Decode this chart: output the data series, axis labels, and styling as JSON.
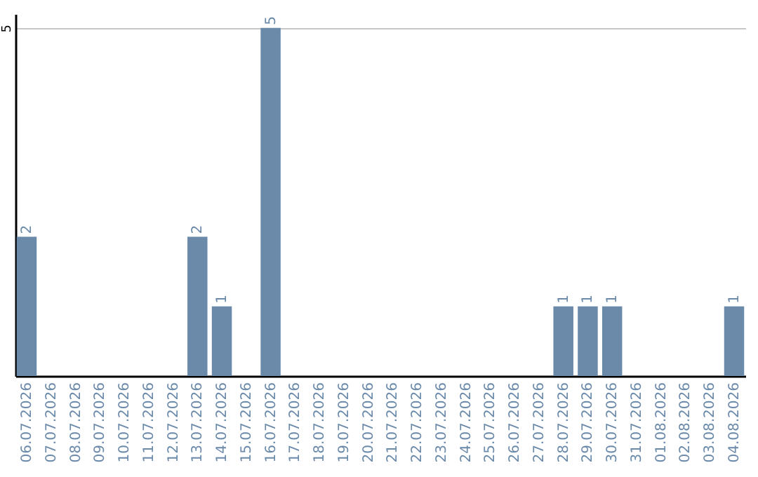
{
  "chart_data": {
    "type": "bar",
    "categories": [
      "06.07.2026",
      "07.07.2026",
      "08.07.2026",
      "09.07.2026",
      "10.07.2026",
      "11.07.2026",
      "12.07.2026",
      "13.07.2026",
      "14.07.2026",
      "15.07.2026",
      "16.07.2026",
      "17.07.2026",
      "18.07.2026",
      "19.07.2026",
      "20.07.2026",
      "21.07.2026",
      "22.07.2026",
      "23.07.2026",
      "24.07.2026",
      "25.07.2026",
      "26.07.2026",
      "27.07.2026",
      "28.07.2026",
      "29.07.2026",
      "30.07.2026",
      "31.07.2026",
      "01.08.2026",
      "02.08.2026",
      "03.08.2026",
      "04.08.2026"
    ],
    "values": [
      2,
      0,
      0,
      0,
      0,
      0,
      0,
      2,
      1,
      0,
      5,
      0,
      0,
      0,
      0,
      0,
      0,
      0,
      0,
      0,
      0,
      0,
      1,
      1,
      1,
      0,
      0,
      0,
      0,
      1
    ],
    "value_labels": [
      "2",
      null,
      null,
      null,
      null,
      null,
      null,
      "2",
      "1",
      null,
      "5",
      null,
      null,
      null,
      null,
      null,
      null,
      null,
      null,
      null,
      null,
      null,
      "1",
      "1",
      "1",
      null,
      null,
      null,
      null,
      "1"
    ],
    "color": "#6b8aaa",
    "ylim": [
      0,
      5.2
    ],
    "yticks": [
      5
    ],
    "grid": "y"
  }
}
